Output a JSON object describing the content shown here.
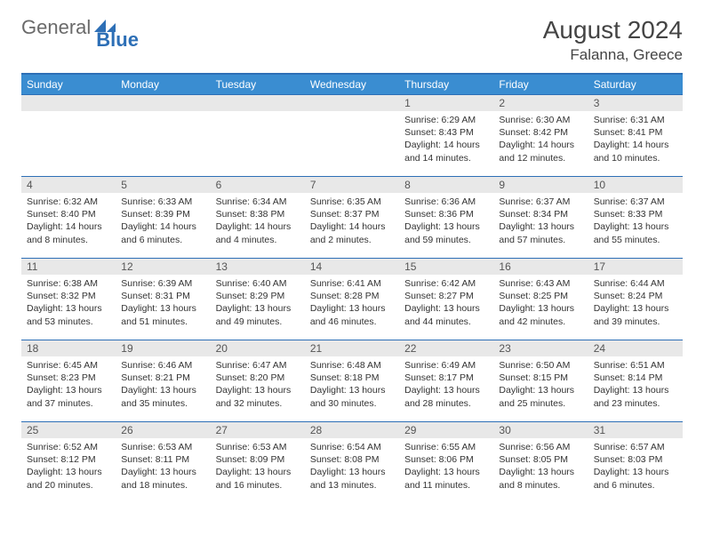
{
  "brand": {
    "part1": "General",
    "part2": "Blue"
  },
  "title": "August 2024",
  "location": "Falanna, Greece",
  "colors": {
    "header_bg": "#3a8dd1",
    "header_text": "#ffffff",
    "border": "#2d6fb6",
    "daynum_bg": "#e8e8e8",
    "text": "#333333"
  },
  "weekdays": [
    "Sunday",
    "Monday",
    "Tuesday",
    "Wednesday",
    "Thursday",
    "Friday",
    "Saturday"
  ],
  "weeks": [
    [
      null,
      null,
      null,
      null,
      {
        "d": "1",
        "sr": "Sunrise: 6:29 AM",
        "ss": "Sunset: 8:43 PM",
        "dl1": "Daylight: 14 hours",
        "dl2": "and 14 minutes."
      },
      {
        "d": "2",
        "sr": "Sunrise: 6:30 AM",
        "ss": "Sunset: 8:42 PM",
        "dl1": "Daylight: 14 hours",
        "dl2": "and 12 minutes."
      },
      {
        "d": "3",
        "sr": "Sunrise: 6:31 AM",
        "ss": "Sunset: 8:41 PM",
        "dl1": "Daylight: 14 hours",
        "dl2": "and 10 minutes."
      }
    ],
    [
      {
        "d": "4",
        "sr": "Sunrise: 6:32 AM",
        "ss": "Sunset: 8:40 PM",
        "dl1": "Daylight: 14 hours",
        "dl2": "and 8 minutes."
      },
      {
        "d": "5",
        "sr": "Sunrise: 6:33 AM",
        "ss": "Sunset: 8:39 PM",
        "dl1": "Daylight: 14 hours",
        "dl2": "and 6 minutes."
      },
      {
        "d": "6",
        "sr": "Sunrise: 6:34 AM",
        "ss": "Sunset: 8:38 PM",
        "dl1": "Daylight: 14 hours",
        "dl2": "and 4 minutes."
      },
      {
        "d": "7",
        "sr": "Sunrise: 6:35 AM",
        "ss": "Sunset: 8:37 PM",
        "dl1": "Daylight: 14 hours",
        "dl2": "and 2 minutes."
      },
      {
        "d": "8",
        "sr": "Sunrise: 6:36 AM",
        "ss": "Sunset: 8:36 PM",
        "dl1": "Daylight: 13 hours",
        "dl2": "and 59 minutes."
      },
      {
        "d": "9",
        "sr": "Sunrise: 6:37 AM",
        "ss": "Sunset: 8:34 PM",
        "dl1": "Daylight: 13 hours",
        "dl2": "and 57 minutes."
      },
      {
        "d": "10",
        "sr": "Sunrise: 6:37 AM",
        "ss": "Sunset: 8:33 PM",
        "dl1": "Daylight: 13 hours",
        "dl2": "and 55 minutes."
      }
    ],
    [
      {
        "d": "11",
        "sr": "Sunrise: 6:38 AM",
        "ss": "Sunset: 8:32 PM",
        "dl1": "Daylight: 13 hours",
        "dl2": "and 53 minutes."
      },
      {
        "d": "12",
        "sr": "Sunrise: 6:39 AM",
        "ss": "Sunset: 8:31 PM",
        "dl1": "Daylight: 13 hours",
        "dl2": "and 51 minutes."
      },
      {
        "d": "13",
        "sr": "Sunrise: 6:40 AM",
        "ss": "Sunset: 8:29 PM",
        "dl1": "Daylight: 13 hours",
        "dl2": "and 49 minutes."
      },
      {
        "d": "14",
        "sr": "Sunrise: 6:41 AM",
        "ss": "Sunset: 8:28 PM",
        "dl1": "Daylight: 13 hours",
        "dl2": "and 46 minutes."
      },
      {
        "d": "15",
        "sr": "Sunrise: 6:42 AM",
        "ss": "Sunset: 8:27 PM",
        "dl1": "Daylight: 13 hours",
        "dl2": "and 44 minutes."
      },
      {
        "d": "16",
        "sr": "Sunrise: 6:43 AM",
        "ss": "Sunset: 8:25 PM",
        "dl1": "Daylight: 13 hours",
        "dl2": "and 42 minutes."
      },
      {
        "d": "17",
        "sr": "Sunrise: 6:44 AM",
        "ss": "Sunset: 8:24 PM",
        "dl1": "Daylight: 13 hours",
        "dl2": "and 39 minutes."
      }
    ],
    [
      {
        "d": "18",
        "sr": "Sunrise: 6:45 AM",
        "ss": "Sunset: 8:23 PM",
        "dl1": "Daylight: 13 hours",
        "dl2": "and 37 minutes."
      },
      {
        "d": "19",
        "sr": "Sunrise: 6:46 AM",
        "ss": "Sunset: 8:21 PM",
        "dl1": "Daylight: 13 hours",
        "dl2": "and 35 minutes."
      },
      {
        "d": "20",
        "sr": "Sunrise: 6:47 AM",
        "ss": "Sunset: 8:20 PM",
        "dl1": "Daylight: 13 hours",
        "dl2": "and 32 minutes."
      },
      {
        "d": "21",
        "sr": "Sunrise: 6:48 AM",
        "ss": "Sunset: 8:18 PM",
        "dl1": "Daylight: 13 hours",
        "dl2": "and 30 minutes."
      },
      {
        "d": "22",
        "sr": "Sunrise: 6:49 AM",
        "ss": "Sunset: 8:17 PM",
        "dl1": "Daylight: 13 hours",
        "dl2": "and 28 minutes."
      },
      {
        "d": "23",
        "sr": "Sunrise: 6:50 AM",
        "ss": "Sunset: 8:15 PM",
        "dl1": "Daylight: 13 hours",
        "dl2": "and 25 minutes."
      },
      {
        "d": "24",
        "sr": "Sunrise: 6:51 AM",
        "ss": "Sunset: 8:14 PM",
        "dl1": "Daylight: 13 hours",
        "dl2": "and 23 minutes."
      }
    ],
    [
      {
        "d": "25",
        "sr": "Sunrise: 6:52 AM",
        "ss": "Sunset: 8:12 PM",
        "dl1": "Daylight: 13 hours",
        "dl2": "and 20 minutes."
      },
      {
        "d": "26",
        "sr": "Sunrise: 6:53 AM",
        "ss": "Sunset: 8:11 PM",
        "dl1": "Daylight: 13 hours",
        "dl2": "and 18 minutes."
      },
      {
        "d": "27",
        "sr": "Sunrise: 6:53 AM",
        "ss": "Sunset: 8:09 PM",
        "dl1": "Daylight: 13 hours",
        "dl2": "and 16 minutes."
      },
      {
        "d": "28",
        "sr": "Sunrise: 6:54 AM",
        "ss": "Sunset: 8:08 PM",
        "dl1": "Daylight: 13 hours",
        "dl2": "and 13 minutes."
      },
      {
        "d": "29",
        "sr": "Sunrise: 6:55 AM",
        "ss": "Sunset: 8:06 PM",
        "dl1": "Daylight: 13 hours",
        "dl2": "and 11 minutes."
      },
      {
        "d": "30",
        "sr": "Sunrise: 6:56 AM",
        "ss": "Sunset: 8:05 PM",
        "dl1": "Daylight: 13 hours",
        "dl2": "and 8 minutes."
      },
      {
        "d": "31",
        "sr": "Sunrise: 6:57 AM",
        "ss": "Sunset: 8:03 PM",
        "dl1": "Daylight: 13 hours",
        "dl2": "and 6 minutes."
      }
    ]
  ]
}
